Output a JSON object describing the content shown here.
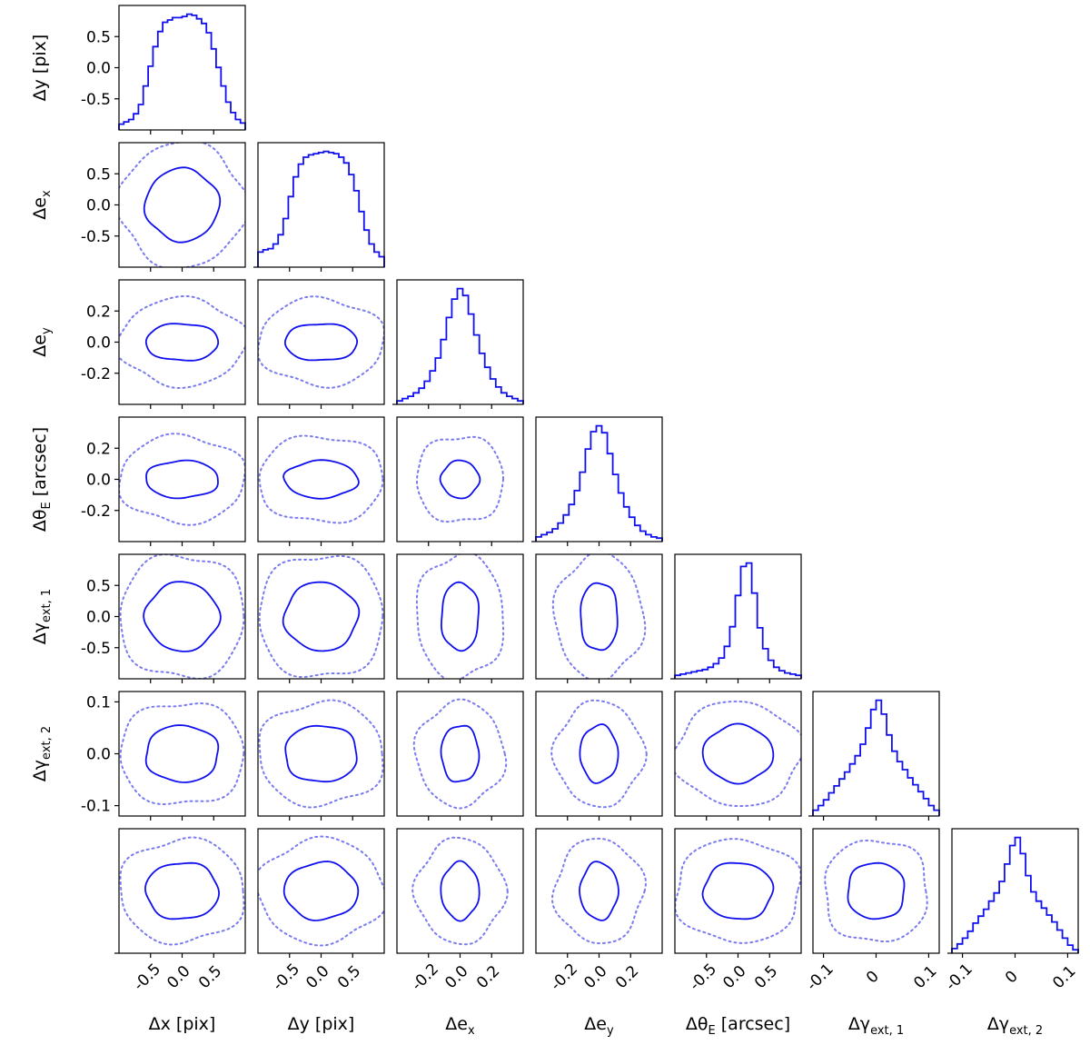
{
  "chart_data": {
    "type": "corner",
    "colors": {
      "contour": "#1010ee",
      "outer_contour": "#7b7bf0",
      "histogram": "#1010ee"
    },
    "params": [
      {
        "key": "dx",
        "label_main": "Δx",
        "label_sub": "",
        "label_unit": " [pix]",
        "range": [
          -1,
          1
        ],
        "ticks": [
          -0.5,
          0.0,
          0.5
        ],
        "tick_labels": [
          "-0.5",
          "0.0",
          "0.5"
        ]
      },
      {
        "key": "dy",
        "label_main": "Δy",
        "label_sub": "",
        "label_unit": " [pix]",
        "range": [
          -1,
          1
        ],
        "ticks": [
          -0.5,
          0.0,
          0.5
        ],
        "tick_labels": [
          "-0.5",
          "0.0",
          "0.5"
        ]
      },
      {
        "key": "dex",
        "label_main": "Δe",
        "label_sub": "x",
        "label_unit": "",
        "range": [
          -0.4,
          0.4
        ],
        "ticks": [
          -0.2,
          0.0,
          0.2
        ],
        "tick_labels": [
          "-0.2",
          "0.0",
          "0.2"
        ]
      },
      {
        "key": "dey",
        "label_main": "Δe",
        "label_sub": "y",
        "label_unit": "",
        "range": [
          -0.4,
          0.4
        ],
        "ticks": [
          -0.2,
          0.0,
          0.2
        ],
        "tick_labels": [
          "-0.2",
          "0.0",
          "0.2"
        ]
      },
      {
        "key": "dthetaE",
        "label_main": "Δθ",
        "label_sub": "E",
        "label_unit": " [arcsec]",
        "range": [
          -1,
          1
        ],
        "ticks": [
          -0.5,
          0.0,
          0.5
        ],
        "tick_labels": [
          "-0.5",
          "0.0",
          "0.5"
        ]
      },
      {
        "key": "dgamma1",
        "label_main": "Δγ",
        "label_sub": "ext, 1",
        "label_unit": "",
        "range": [
          -0.12,
          0.12
        ],
        "ticks": [
          -0.1,
          0.0,
          0.1
        ],
        "tick_labels": [
          "-0.1",
          "0.0",
          "0.1"
        ]
      },
      {
        "key": "dgamma2",
        "label_main": "Δγ",
        "label_sub": "ext, 2",
        "label_unit": "",
        "range": [
          -0.12,
          0.12
        ],
        "ticks": [
          -0.1,
          0.0,
          0.1
        ],
        "tick_labels": [
          "-0.1",
          "0",
          "0.1"
        ]
      }
    ],
    "x_tick_labels": [
      [
        "-0.5",
        "0.0",
        "0.5"
      ],
      [
        "-0.5",
        "0.0",
        "0.5"
      ],
      [
        "-0.2",
        "0.0",
        "0.2"
      ],
      [
        "-0.2",
        "0.0",
        "0.2"
      ],
      [
        "-0.5",
        "0.0",
        "0.5"
      ],
      [
        "-0.1",
        "0",
        "0.1"
      ],
      [
        "-0.1",
        "0",
        "0.1"
      ]
    ],
    "contour_half_widths_inner": [
      0.58,
      0.58,
      0.12,
      0.12,
      0.55,
      0.055,
      0.055
    ],
    "contour_half_widths_outer": [
      1.0,
      1.0,
      0.28,
      0.28,
      1.0,
      0.1,
      0.1
    ],
    "histograms": [
      [
        0.05,
        0.07,
        0.09,
        0.14,
        0.22,
        0.38,
        0.55,
        0.72,
        0.85,
        0.93,
        0.95,
        0.97,
        0.97,
        0.98,
        1.0,
        0.99,
        0.96,
        0.92,
        0.84,
        0.7,
        0.54,
        0.38,
        0.24,
        0.15,
        0.09,
        0.06
      ],
      [
        0.13,
        0.15,
        0.16,
        0.2,
        0.28,
        0.42,
        0.61,
        0.78,
        0.89,
        0.95,
        0.97,
        0.98,
        0.99,
        1.0,
        0.99,
        0.98,
        0.95,
        0.9,
        0.8,
        0.66,
        0.48,
        0.32,
        0.2,
        0.13,
        0.09
      ],
      [
        0.03,
        0.05,
        0.07,
        0.1,
        0.14,
        0.2,
        0.29,
        0.4,
        0.56,
        0.75,
        0.91,
        1.0,
        0.94,
        0.78,
        0.6,
        0.44,
        0.32,
        0.22,
        0.15,
        0.1,
        0.07,
        0.05,
        0.03
      ],
      [
        0.04,
        0.06,
        0.08,
        0.11,
        0.16,
        0.23,
        0.32,
        0.44,
        0.6,
        0.8,
        0.95,
        1.0,
        0.94,
        0.76,
        0.58,
        0.42,
        0.3,
        0.21,
        0.14,
        0.09,
        0.06,
        0.04,
        0.03
      ],
      [
        0.03,
        0.04,
        0.05,
        0.06,
        0.07,
        0.08,
        0.1,
        0.13,
        0.18,
        0.28,
        0.45,
        0.72,
        0.97,
        1.0,
        0.74,
        0.44,
        0.26,
        0.16,
        0.1,
        0.07,
        0.05,
        0.04,
        0.03
      ],
      [
        0.05,
        0.09,
        0.14,
        0.2,
        0.26,
        0.32,
        0.38,
        0.45,
        0.52,
        0.62,
        0.76,
        0.92,
        1.0,
        0.88,
        0.7,
        0.56,
        0.47,
        0.4,
        0.33,
        0.27,
        0.21,
        0.15,
        0.09,
        0.05
      ],
      [
        0.04,
        0.08,
        0.13,
        0.19,
        0.26,
        0.32,
        0.38,
        0.45,
        0.52,
        0.62,
        0.77,
        0.93,
        1.0,
        0.86,
        0.67,
        0.53,
        0.45,
        0.39,
        0.33,
        0.27,
        0.2,
        0.13,
        0.07,
        0.03
      ]
    ],
    "grid": false
  }
}
